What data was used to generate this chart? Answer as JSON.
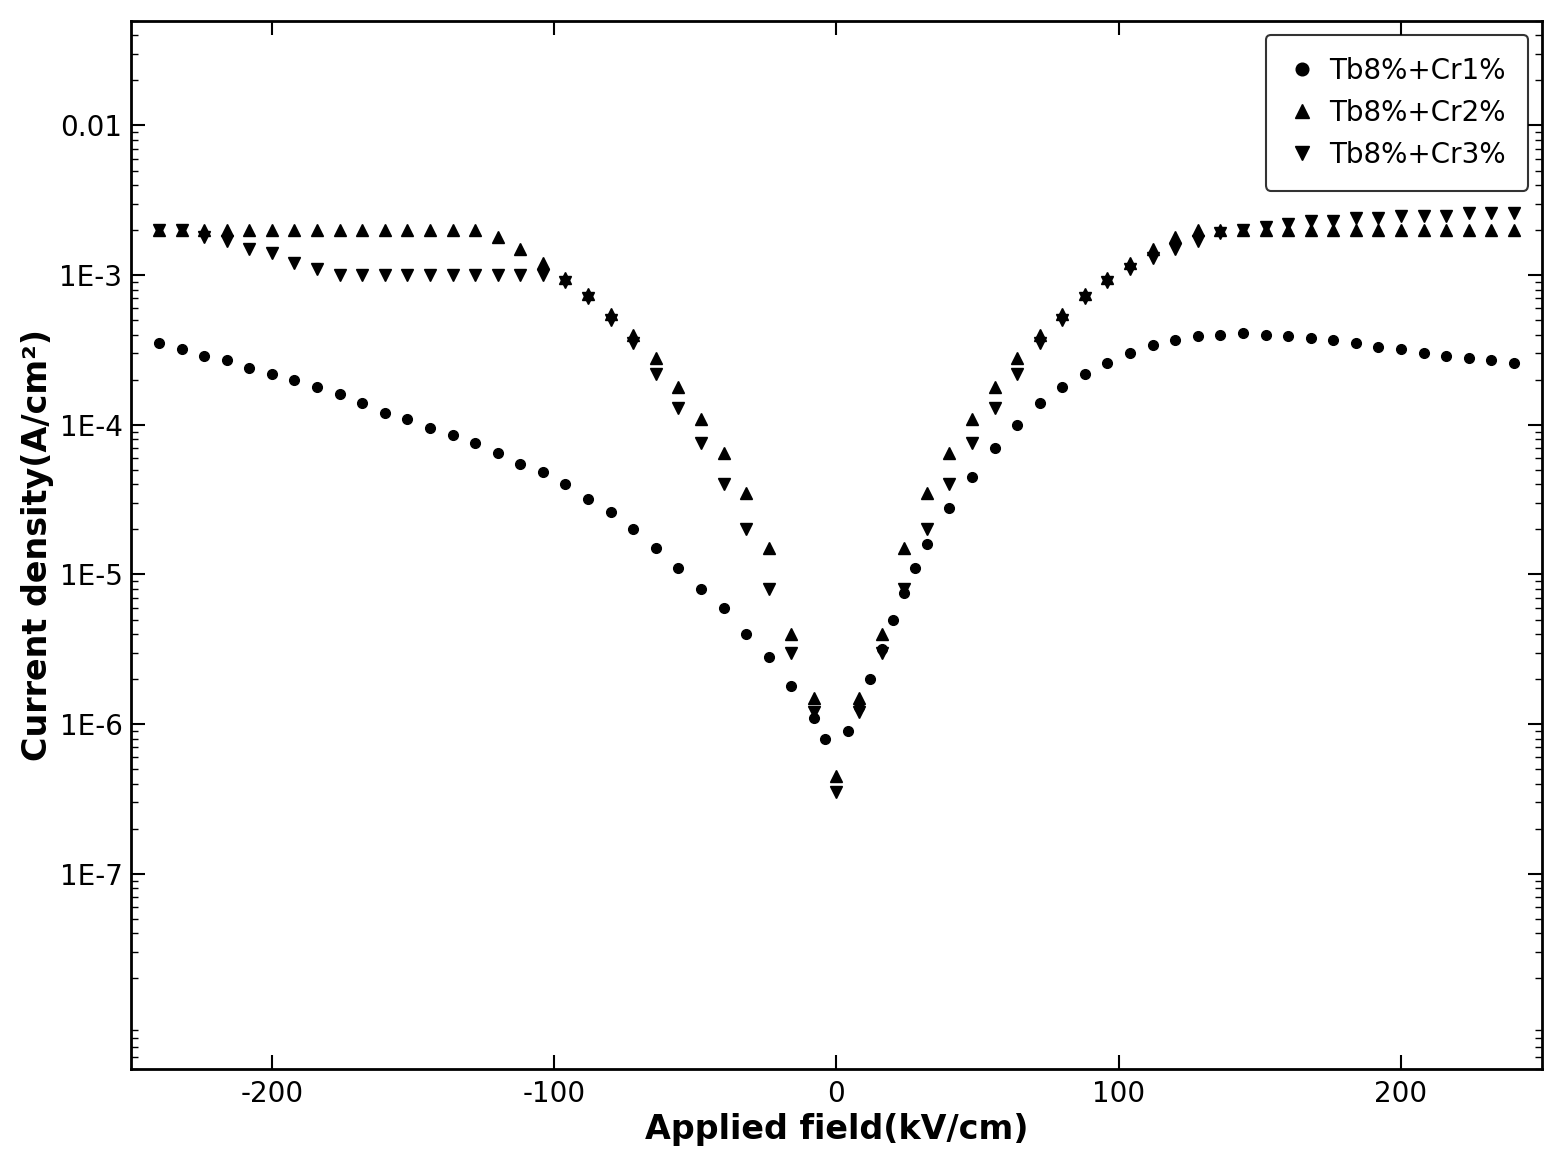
{
  "xlabel": "Applied field(kV/cm)",
  "ylabel": "Current density(A/cm²)",
  "xlim": [
    -250,
    250
  ],
  "legend_labels": [
    "Tb8%+Cr1%",
    "Tb8%+Cr2%",
    "Tb8%+Cr3%"
  ],
  "ytick_labels": [
    "1E-7",
    "1E-6",
    "1E-5",
    "1E-4",
    "1E-3",
    "0.01"
  ],
  "ytick_values": [
    1e-07,
    1e-06,
    1e-05,
    0.0001,
    0.001,
    0.01
  ],
  "series1_x": [
    -240,
    -232,
    -224,
    -216,
    -208,
    -200,
    -192,
    -184,
    -176,
    -168,
    -160,
    -152,
    -144,
    -136,
    -128,
    -120,
    -112,
    -104,
    -96,
    -88,
    -80,
    -72,
    -64,
    -56,
    -48,
    -40,
    -32,
    -24,
    -16,
    -8,
    -4,
    4,
    8,
    12,
    16,
    20,
    24,
    28,
    32,
    40,
    48,
    56,
    64,
    72,
    80,
    88,
    96,
    104,
    112,
    120,
    128,
    136,
    144,
    152,
    160,
    168,
    176,
    184,
    192,
    200,
    208,
    216,
    224,
    232,
    240
  ],
  "series1_y": [
    0.00035,
    0.00032,
    0.00029,
    0.00027,
    0.00024,
    0.00022,
    0.0002,
    0.00018,
    0.00016,
    0.00014,
    0.00012,
    0.00011,
    9.5e-05,
    8.5e-05,
    7.5e-05,
    6.5e-05,
    5.5e-05,
    4.8e-05,
    4e-05,
    3.2e-05,
    2.6e-05,
    2e-05,
    1.5e-05,
    1.1e-05,
    8e-06,
    6e-06,
    4e-06,
    2.8e-06,
    1.8e-06,
    1.1e-06,
    8e-07,
    9e-07,
    1.3e-06,
    2e-06,
    3.2e-06,
    5e-06,
    7.5e-06,
    1.1e-05,
    1.6e-05,
    2.8e-05,
    4.5e-05,
    7e-05,
    0.0001,
    0.00014,
    0.00018,
    0.00022,
    0.00026,
    0.0003,
    0.00034,
    0.00037,
    0.00039,
    0.0004,
    0.00041,
    0.0004,
    0.00039,
    0.00038,
    0.00037,
    0.00035,
    0.00033,
    0.00032,
    0.0003,
    0.00029,
    0.00028,
    0.00027,
    0.00026
  ],
  "series2_x": [
    -240,
    -232,
    -224,
    -216,
    -208,
    -200,
    -192,
    -184,
    -176,
    -168,
    -160,
    -152,
    -144,
    -136,
    -128,
    -120,
    -112,
    -104,
    -96,
    -88,
    -80,
    -72,
    -64,
    -56,
    -48,
    -40,
    -32,
    -24,
    -16,
    -8,
    0,
    8,
    16,
    24,
    32,
    40,
    48,
    56,
    64,
    72,
    80,
    88,
    96,
    104,
    112,
    120,
    128,
    136,
    144,
    152,
    160,
    168,
    176,
    184,
    192,
    200,
    208,
    216,
    224,
    232,
    240
  ],
  "series2_y": [
    0.002,
    0.002,
    0.002,
    0.002,
    0.002,
    0.002,
    0.002,
    0.002,
    0.002,
    0.002,
    0.002,
    0.002,
    0.002,
    0.002,
    0.002,
    0.0018,
    0.0015,
    0.0012,
    0.00095,
    0.00075,
    0.00055,
    0.0004,
    0.00028,
    0.00018,
    0.00011,
    6.5e-05,
    3.5e-05,
    1.5e-05,
    4e-06,
    1.5e-06,
    4.5e-07,
    1.5e-06,
    4e-06,
    1.5e-05,
    3.5e-05,
    6.5e-05,
    0.00011,
    0.00018,
    0.00028,
    0.0004,
    0.00055,
    0.00075,
    0.00095,
    0.0012,
    0.0015,
    0.0018,
    0.002,
    0.002,
    0.002,
    0.002,
    0.002,
    0.002,
    0.002,
    0.002,
    0.002,
    0.002,
    0.002,
    0.002,
    0.002,
    0.002,
    0.002
  ],
  "series3_x": [
    -240,
    -232,
    -224,
    -216,
    -208,
    -200,
    -192,
    -184,
    -176,
    -168,
    -160,
    -152,
    -144,
    -136,
    -128,
    -120,
    -112,
    -104,
    -96,
    -88,
    -80,
    -72,
    -64,
    -56,
    -48,
    -40,
    -32,
    -24,
    -16,
    -8,
    0,
    8,
    16,
    24,
    32,
    40,
    48,
    56,
    64,
    72,
    80,
    88,
    96,
    104,
    112,
    120,
    128,
    136,
    144,
    152,
    160,
    168,
    176,
    184,
    192,
    200,
    208,
    216,
    224,
    232,
    240
  ],
  "series3_y": [
    0.002,
    0.002,
    0.0018,
    0.0017,
    0.0015,
    0.0014,
    0.0012,
    0.0011,
    0.001,
    0.001,
    0.001,
    0.001,
    0.001,
    0.001,
    0.001,
    0.001,
    0.001,
    0.001,
    0.0009,
    0.0007,
    0.0005,
    0.00035,
    0.00022,
    0.00013,
    7.5e-05,
    4e-05,
    2e-05,
    8e-06,
    3e-06,
    1.2e-06,
    3.5e-07,
    1.2e-06,
    3e-06,
    8e-06,
    2e-05,
    4e-05,
    7.5e-05,
    0.00013,
    0.00022,
    0.00035,
    0.0005,
    0.0007,
    0.0009,
    0.0011,
    0.0013,
    0.0015,
    0.0017,
    0.0019,
    0.002,
    0.0021,
    0.0022,
    0.0023,
    0.0023,
    0.0024,
    0.0024,
    0.0025,
    0.0025,
    0.0025,
    0.0026,
    0.0026,
    0.0026
  ]
}
